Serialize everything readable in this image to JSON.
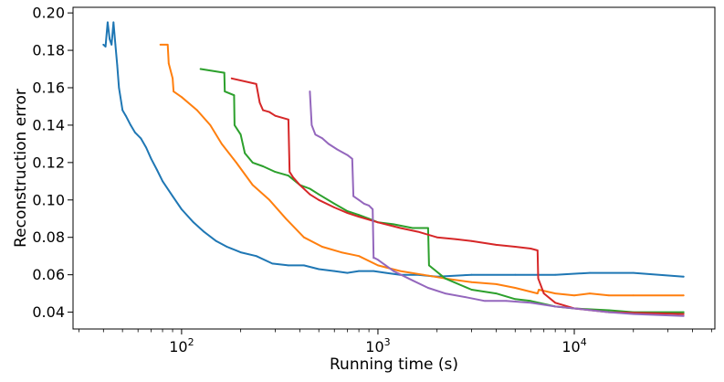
{
  "chart_data": {
    "type": "line",
    "title": "",
    "xlabel": "Running time (s)",
    "ylabel": "Reconstruction error",
    "xscale": "log",
    "xlim": [
      28,
      52000
    ],
    "ylim": [
      0.031,
      0.203
    ],
    "xticks": [
      {
        "value": 100,
        "label": "10",
        "exp": "2"
      },
      {
        "value": 1000,
        "label": "10",
        "exp": "3"
      },
      {
        "value": 10000,
        "label": "10",
        "exp": "4"
      }
    ],
    "yticks": [
      {
        "value": 0.04,
        "label": "0.04"
      },
      {
        "value": 0.06,
        "label": "0.06"
      },
      {
        "value": 0.08,
        "label": "0.08"
      },
      {
        "value": 0.1,
        "label": "0.10"
      },
      {
        "value": 0.12,
        "label": "0.12"
      },
      {
        "value": 0.14,
        "label": "0.14"
      },
      {
        "value": 0.16,
        "label": "0.16"
      },
      {
        "value": 0.18,
        "label": "0.18"
      },
      {
        "value": 0.2,
        "label": "0.20"
      }
    ],
    "grid": false,
    "legend": "none",
    "series": [
      {
        "name": "blue",
        "color": "#1f77b4",
        "x": [
          40,
          41,
          42,
          43,
          44,
          45,
          46,
          47,
          48,
          50,
          52,
          55,
          58,
          62,
          66,
          70,
          75,
          80,
          90,
          100,
          115,
          130,
          150,
          170,
          200,
          240,
          290,
          350,
          420,
          500,
          600,
          700,
          800,
          950,
          1100,
          1300,
          1600,
          2000,
          3000,
          5000,
          8000,
          12000,
          20000,
          36000
        ],
        "y": [
          0.183,
          0.182,
          0.195,
          0.186,
          0.183,
          0.195,
          0.183,
          0.172,
          0.16,
          0.148,
          0.145,
          0.14,
          0.136,
          0.133,
          0.128,
          0.122,
          0.116,
          0.11,
          0.102,
          0.095,
          0.088,
          0.083,
          0.078,
          0.075,
          0.072,
          0.07,
          0.066,
          0.065,
          0.065,
          0.063,
          0.062,
          0.061,
          0.062,
          0.062,
          0.061,
          0.06,
          0.06,
          0.059,
          0.06,
          0.06,
          0.06,
          0.061,
          0.061,
          0.059
        ]
      },
      {
        "name": "orange",
        "color": "#ff7f0e",
        "x": [
          78,
          85,
          86,
          90,
          91,
          100,
          120,
          140,
          160,
          190,
          230,
          280,
          340,
          420,
          520,
          650,
          800,
          1000,
          1300,
          1700,
          2200,
          3000,
          4000,
          5000,
          6500,
          6600,
          8000,
          10000,
          12000,
          15000,
          20000,
          36000
        ],
        "y": [
          0.183,
          0.183,
          0.173,
          0.165,
          0.158,
          0.155,
          0.148,
          0.14,
          0.13,
          0.12,
          0.108,
          0.1,
          0.09,
          0.08,
          0.075,
          0.072,
          0.07,
          0.065,
          0.062,
          0.06,
          0.058,
          0.056,
          0.055,
          0.053,
          0.05,
          0.052,
          0.05,
          0.049,
          0.05,
          0.049,
          0.049,
          0.049
        ]
      },
      {
        "name": "green",
        "color": "#2ca02c",
        "x": [
          125,
          165,
          166,
          185,
          186,
          200,
          210,
          230,
          260,
          300,
          350,
          400,
          450,
          500,
          600,
          700,
          800,
          900,
          1000,
          1200,
          1500,
          1800,
          1820,
          2200,
          3000,
          4000,
          5000,
          6000,
          8000,
          10000,
          15000,
          20000,
          36000
        ],
        "y": [
          0.17,
          0.168,
          0.158,
          0.156,
          0.14,
          0.135,
          0.125,
          0.12,
          0.118,
          0.115,
          0.113,
          0.108,
          0.106,
          0.103,
          0.098,
          0.094,
          0.092,
          0.09,
          0.088,
          0.087,
          0.085,
          0.085,
          0.065,
          0.058,
          0.052,
          0.05,
          0.047,
          0.046,
          0.043,
          0.042,
          0.041,
          0.04,
          0.04
        ]
      },
      {
        "name": "red",
        "color": "#d62728",
        "x": [
          180,
          240,
          250,
          260,
          280,
          300,
          350,
          355,
          370,
          400,
          450,
          500,
          600,
          700,
          800,
          1000,
          1300,
          1600,
          2000,
          2500,
          3000,
          4000,
          5000,
          6000,
          6500,
          6550,
          7000,
          8000,
          10000,
          15000,
          36000
        ],
        "y": [
          0.165,
          0.162,
          0.152,
          0.148,
          0.147,
          0.145,
          0.143,
          0.115,
          0.112,
          0.108,
          0.103,
          0.1,
          0.096,
          0.093,
          0.091,
          0.088,
          0.085,
          0.083,
          0.08,
          0.079,
          0.078,
          0.076,
          0.075,
          0.074,
          0.073,
          0.058,
          0.05,
          0.045,
          0.042,
          0.04,
          0.039
        ]
      },
      {
        "name": "purple",
        "color": "#9467bd",
        "x": [
          450,
          460,
          480,
          520,
          560,
          620,
          700,
          740,
          750,
          800,
          850,
          900,
          940,
          950,
          960,
          1000,
          1200,
          1500,
          1800,
          2200,
          2800,
          3500,
          4500,
          6000,
          8000,
          10000,
          15000,
          20000,
          36000
        ],
        "y": [
          0.158,
          0.14,
          0.135,
          0.133,
          0.13,
          0.127,
          0.124,
          0.122,
          0.102,
          0.1,
          0.098,
          0.097,
          0.095,
          0.069,
          0.069,
          0.068,
          0.062,
          0.057,
          0.053,
          0.05,
          0.048,
          0.046,
          0.046,
          0.045,
          0.043,
          0.042,
          0.04,
          0.039,
          0.038
        ]
      }
    ]
  }
}
